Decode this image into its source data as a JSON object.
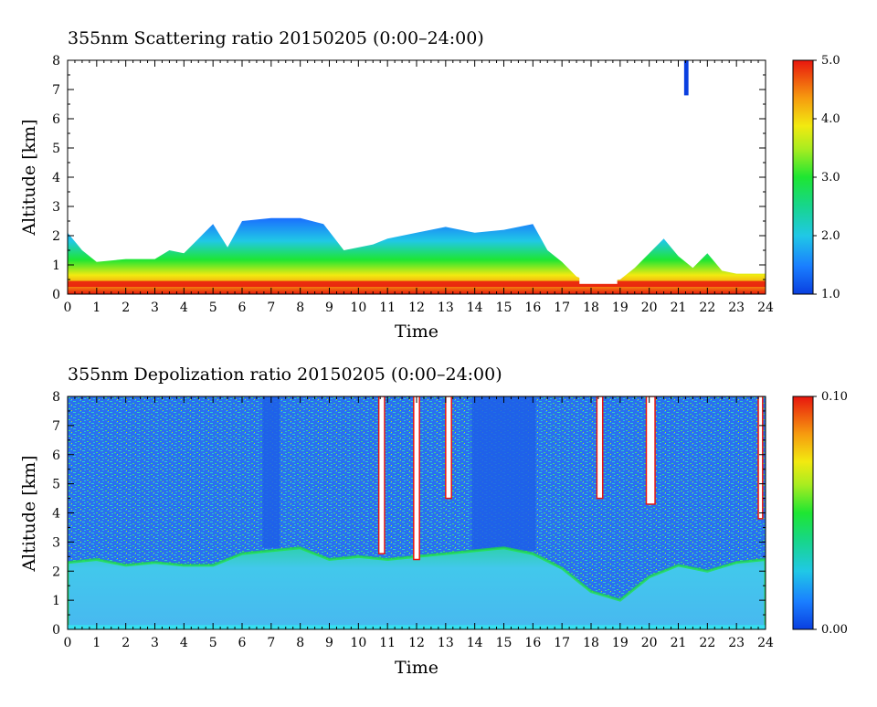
{
  "chart_data": [
    {
      "type": "heatmap",
      "title": "355nm Scattering ratio  20150205 (0:00–24:00)",
      "xlabel": "Time",
      "ylabel": "Altitude [km]",
      "xlim": [
        0,
        24
      ],
      "ylim": [
        0,
        8
      ],
      "xticks": [
        "0",
        "1",
        "2",
        "3",
        "4",
        "5",
        "6",
        "7",
        "8",
        "9",
        "10",
        "11",
        "12",
        "13",
        "14",
        "15",
        "16",
        "17",
        "18",
        "19",
        "20",
        "21",
        "22",
        "23",
        "24"
      ],
      "yticks": [
        "0",
        "1",
        "2",
        "3",
        "4",
        "5",
        "6",
        "7",
        "8"
      ],
      "colorbar": {
        "min": 1.0,
        "max": 5.0,
        "ticks": [
          "1.0",
          "2.0",
          "3.0",
          "4.0",
          "5.0"
        ]
      },
      "low_color": "#0a3fe0",
      "high_color": "#e8160e",
      "cloud_top_km": [
        [
          0.0,
          2.1
        ],
        [
          0.5,
          1.5
        ],
        [
          1.0,
          1.1
        ],
        [
          2.0,
          1.2
        ],
        [
          3.0,
          1.2
        ],
        [
          3.5,
          1.5
        ],
        [
          4.0,
          1.4
        ],
        [
          4.5,
          1.9
        ],
        [
          5.0,
          2.4
        ],
        [
          5.5,
          1.6
        ],
        [
          6.0,
          2.5
        ],
        [
          7.0,
          2.6
        ],
        [
          8.0,
          2.6
        ],
        [
          8.8,
          2.4
        ],
        [
          9.5,
          1.5
        ],
        [
          10.5,
          1.7
        ],
        [
          11.0,
          1.9
        ],
        [
          12.0,
          2.1
        ],
        [
          13.0,
          2.3
        ],
        [
          14.0,
          2.1
        ],
        [
          15.0,
          2.2
        ],
        [
          16.0,
          2.4
        ],
        [
          16.5,
          1.5
        ],
        [
          17.0,
          1.1
        ],
        [
          17.5,
          0.6
        ],
        [
          18.0,
          0.4
        ],
        [
          19.0,
          0.5
        ],
        [
          19.5,
          0.9
        ],
        [
          20.0,
          1.4
        ],
        [
          20.5,
          1.9
        ],
        [
          21.0,
          1.3
        ],
        [
          21.5,
          0.9
        ],
        [
          22.0,
          1.4
        ],
        [
          22.5,
          0.8
        ],
        [
          23.0,
          0.7
        ],
        [
          24.0,
          0.7
        ]
      ],
      "features": [
        {
          "x": [
            21.2,
            21.35
          ],
          "y": [
            6.8,
            8.0
          ],
          "value": 1.2
        }
      ]
    },
    {
      "type": "heatmap",
      "title": "355nm Depolization ratio  20150205 (0:00–24:00)",
      "xlabel": "Time",
      "ylabel": "Altitude [km]",
      "xlim": [
        0,
        24
      ],
      "ylim": [
        0,
        8
      ],
      "xticks": [
        "0",
        "1",
        "2",
        "3",
        "4",
        "5",
        "6",
        "7",
        "8",
        "9",
        "10",
        "11",
        "12",
        "13",
        "14",
        "15",
        "16",
        "17",
        "18",
        "19",
        "20",
        "21",
        "22",
        "23",
        "24"
      ],
      "yticks": [
        "0",
        "1",
        "2",
        "3",
        "4",
        "5",
        "6",
        "7",
        "8"
      ],
      "colorbar": {
        "min": 0.0,
        "max": 0.1,
        "ticks": [
          "0.00",
          "0.10"
        ]
      },
      "low_color": "#0a3fe0",
      "high_color": "#e8160e",
      "boundary_layer_top_km": [
        [
          0.0,
          2.3
        ],
        [
          1.0,
          2.4
        ],
        [
          2.0,
          2.2
        ],
        [
          3.0,
          2.3
        ],
        [
          4.0,
          2.2
        ],
        [
          5.0,
          2.2
        ],
        [
          6.0,
          2.6
        ],
        [
          7.0,
          2.7
        ],
        [
          8.0,
          2.8
        ],
        [
          9.0,
          2.4
        ],
        [
          10.0,
          2.5
        ],
        [
          11.0,
          2.4
        ],
        [
          12.0,
          2.5
        ],
        [
          13.0,
          2.6
        ],
        [
          14.0,
          2.7
        ],
        [
          15.0,
          2.8
        ],
        [
          16.0,
          2.6
        ],
        [
          17.0,
          2.1
        ],
        [
          18.0,
          1.3
        ],
        [
          19.0,
          1.0
        ],
        [
          20.0,
          1.8
        ],
        [
          21.0,
          2.2
        ],
        [
          22.0,
          2.0
        ],
        [
          23.0,
          2.3
        ],
        [
          24.0,
          2.4
        ]
      ],
      "high_depol_columns": [
        {
          "x": [
            10.7,
            10.9
          ],
          "y": [
            2.6,
            8.0
          ]
        },
        {
          "x": [
            11.9,
            12.1
          ],
          "y": [
            2.4,
            8.0
          ]
        },
        {
          "x": [
            13.0,
            13.2
          ],
          "y": [
            4.5,
            8.0
          ]
        },
        {
          "x": [
            18.2,
            18.4
          ],
          "y": [
            4.5,
            8.0
          ]
        },
        {
          "x": [
            19.9,
            20.2
          ],
          "y": [
            4.3,
            8.0
          ]
        },
        {
          "x": [
            23.75,
            23.9
          ],
          "y": [
            3.8,
            8.0
          ]
        }
      ],
      "low_depol_columns": [
        {
          "x": [
            13.9,
            16.1
          ],
          "y": [
            2.7,
            8.0
          ]
        },
        {
          "x": [
            6.7,
            7.3
          ],
          "y": [
            2.8,
            8.0
          ]
        }
      ]
    }
  ]
}
